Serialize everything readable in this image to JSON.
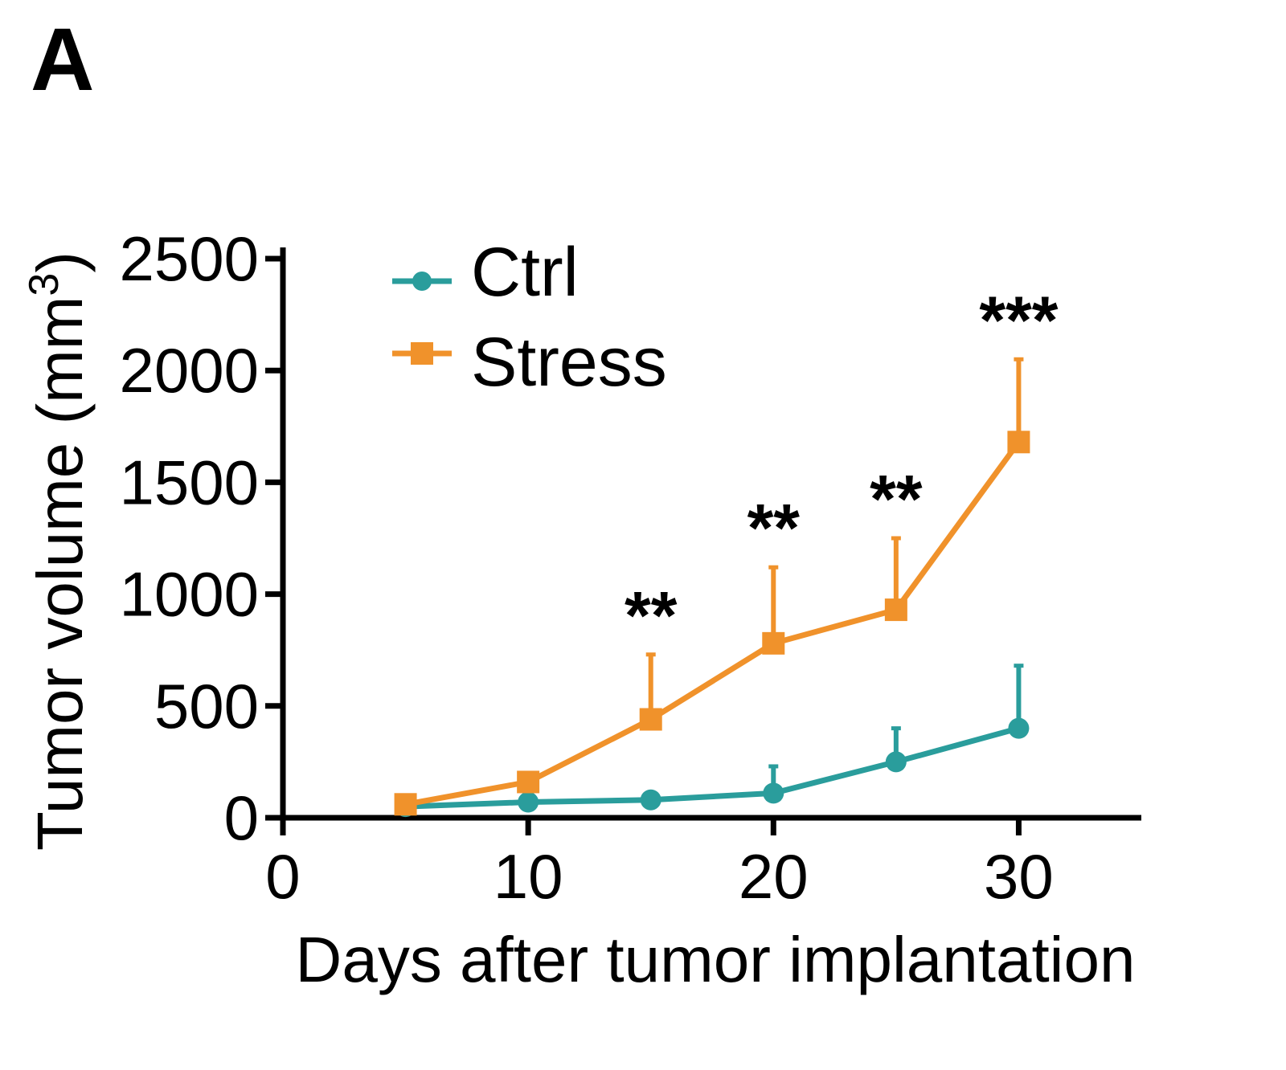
{
  "panel_label": "A",
  "chart_data": {
    "type": "line",
    "xlabel": "Days after tumor implantation",
    "ylabel": "Tumor volume (mm",
    "ylabel_superscript": "3",
    "ylabel_close": ")",
    "xlim": [
      0,
      35
    ],
    "ylim": [
      0,
      2500
    ],
    "xticks": [
      0,
      10,
      20,
      30
    ],
    "yticks": [
      0,
      500,
      1000,
      1500,
      2000,
      2500
    ],
    "grid": false,
    "legend": "top-left",
    "series": [
      {
        "name": "Ctrl",
        "color": "#2a9d9c",
        "marker": "circle",
        "x": [
          5,
          10,
          15,
          20,
          25,
          30
        ],
        "y": [
          50,
          70,
          80,
          110,
          250,
          400
        ],
        "error": [
          0,
          0,
          0,
          120,
          150,
          280
        ]
      },
      {
        "name": "Stress",
        "color": "#f0922b",
        "marker": "square",
        "x": [
          5,
          10,
          15,
          20,
          25,
          30
        ],
        "y": [
          60,
          160,
          440,
          780,
          930,
          1680
        ],
        "error": [
          0,
          0,
          290,
          340,
          320,
          370
        ]
      }
    ],
    "annotations": [
      {
        "text": "**",
        "x": 15
      },
      {
        "text": "**",
        "x": 20
      },
      {
        "text": "**",
        "x": 25
      },
      {
        "text": "***",
        "x": 30
      }
    ]
  }
}
